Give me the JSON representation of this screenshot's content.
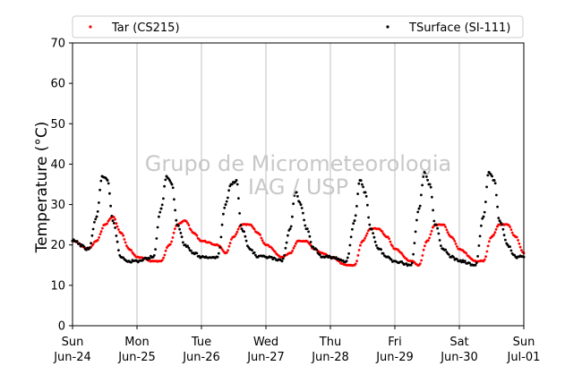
{
  "chart_data": {
    "type": "scatter",
    "title": "",
    "xlabel": "",
    "ylabel": "Temperature (°C)",
    "ylim": [
      0,
      70
    ],
    "yticks": [
      0,
      10,
      20,
      30,
      40,
      50,
      60,
      70
    ],
    "xlim": [
      "2018-06-24T00:00",
      "2018-07-01T00:00"
    ],
    "x_ticks": [
      {
        "day": "Sun",
        "date": "Jun-24"
      },
      {
        "day": "Mon",
        "date": "Jun-25"
      },
      {
        "day": "Tue",
        "date": "Jun-26"
      },
      {
        "day": "Wed",
        "date": "Jun-27"
      },
      {
        "day": "Thu",
        "date": "Jun-28"
      },
      {
        "day": "Fri",
        "date": "Jun-29"
      },
      {
        "day": "Sat",
        "date": "Jun-30"
      },
      {
        "day": "Sun",
        "date": "Jul-01"
      }
    ],
    "grid": "vertical",
    "legend_position": "top",
    "watermark": [
      "Grupo de Micrometeorologia",
      "IAG / USP"
    ],
    "series": [
      {
        "name": "Tar (CS215)",
        "color": "#ff0000",
        "x": [
          "2018-06-24T00:00",
          "2018-06-24T06:00",
          "2018-06-24T09:00",
          "2018-06-24T12:00",
          "2018-06-24T15:00",
          "2018-06-24T18:00",
          "2018-06-24T21:00",
          "2018-06-25T00:00",
          "2018-06-25T06:00",
          "2018-06-25T09:00",
          "2018-06-25T12:00",
          "2018-06-25T15:00",
          "2018-06-25T18:00",
          "2018-06-25T21:00",
          "2018-06-26T00:00",
          "2018-06-26T06:00",
          "2018-06-26T09:00",
          "2018-06-26T12:00",
          "2018-06-26T15:00",
          "2018-06-26T18:00",
          "2018-06-26T21:00",
          "2018-06-27T00:00",
          "2018-06-27T06:00",
          "2018-06-27T09:00",
          "2018-06-27T12:00",
          "2018-06-27T15:00",
          "2018-06-27T18:00",
          "2018-06-27T21:00",
          "2018-06-28T00:00",
          "2018-06-28T06:00",
          "2018-06-28T09:00",
          "2018-06-28T12:00",
          "2018-06-28T15:00",
          "2018-06-28T18:00",
          "2018-06-28T21:00",
          "2018-06-29T00:00",
          "2018-06-29T06:00",
          "2018-06-29T09:00",
          "2018-06-29T12:00",
          "2018-06-29T15:00",
          "2018-06-29T18:00",
          "2018-06-29T21:00",
          "2018-06-30T00:00",
          "2018-06-30T06:00",
          "2018-06-30T09:00",
          "2018-06-30T12:00",
          "2018-06-30T15:00",
          "2018-06-30T18:00",
          "2018-06-30T21:00",
          "2018-07-01T00:00"
        ],
        "y": [
          21,
          19,
          21,
          25,
          27,
          23,
          19,
          17,
          16,
          16,
          20,
          25,
          26,
          23,
          21,
          20,
          18,
          22,
          25,
          25,
          23,
          20,
          17,
          18,
          21,
          21,
          19,
          18,
          17,
          15,
          15,
          21,
          24,
          24,
          22,
          19,
          16,
          15,
          21,
          25,
          25,
          22,
          19,
          16,
          16,
          22,
          25,
          25,
          22,
          18
        ]
      },
      {
        "name": "TSurface (SI-111)",
        "color": "#000000",
        "x": [
          "2018-06-24T00:00",
          "2018-06-24T06:00",
          "2018-06-24T09:00",
          "2018-06-24T11:00",
          "2018-06-24T13:00",
          "2018-06-24T15:00",
          "2018-06-24T18:00",
          "2018-06-24T21:00",
          "2018-06-25T00:00",
          "2018-06-25T06:00",
          "2018-06-25T09:00",
          "2018-06-25T11:00",
          "2018-06-25T13:00",
          "2018-06-25T15:00",
          "2018-06-25T18:00",
          "2018-06-25T21:00",
          "2018-06-26T00:00",
          "2018-06-26T06:00",
          "2018-06-26T09:00",
          "2018-06-26T11:00",
          "2018-06-26T13:00",
          "2018-06-26T15:00",
          "2018-06-26T18:00",
          "2018-06-26T21:00",
          "2018-06-27T00:00",
          "2018-06-27T06:00",
          "2018-06-27T09:00",
          "2018-06-27T11:00",
          "2018-06-27T13:00",
          "2018-06-27T15:00",
          "2018-06-27T18:00",
          "2018-06-27T21:00",
          "2018-06-28T00:00",
          "2018-06-28T06:00",
          "2018-06-28T09:00",
          "2018-06-28T11:00",
          "2018-06-28T13:00",
          "2018-06-28T15:00",
          "2018-06-28T18:00",
          "2018-06-28T21:00",
          "2018-06-29T00:00",
          "2018-06-29T06:00",
          "2018-06-29T09:00",
          "2018-06-29T11:00",
          "2018-06-29T13:00",
          "2018-06-29T15:00",
          "2018-06-29T18:00",
          "2018-06-29T21:00",
          "2018-06-30T00:00",
          "2018-06-30T06:00",
          "2018-06-30T09:00",
          "2018-06-30T11:00",
          "2018-06-30T13:00",
          "2018-06-30T15:00",
          "2018-06-30T18:00",
          "2018-06-30T21:00",
          "2018-07-01T00:00"
        ],
        "y": [
          21,
          19,
          27,
          37,
          36,
          26,
          17,
          16,
          16,
          17,
          29,
          37,
          35,
          25,
          20,
          18,
          17,
          17,
          30,
          35,
          36,
          24,
          19,
          17,
          17,
          16,
          24,
          33,
          30,
          24,
          19,
          17,
          17,
          16,
          26,
          36,
          33,
          24,
          19,
          17,
          16,
          15,
          29,
          38,
          35,
          25,
          19,
          17,
          16,
          15,
          27,
          38,
          36,
          26,
          20,
          17,
          17
        ]
      }
    ]
  }
}
